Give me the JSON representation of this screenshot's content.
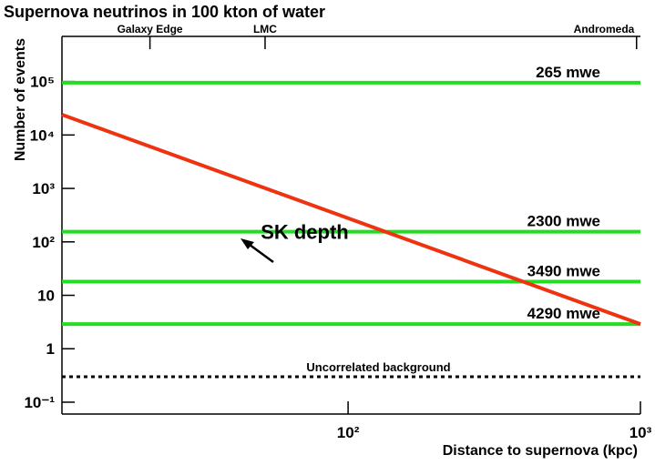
{
  "chart_data": {
    "type": "line",
    "title": "Supernova neutrinos in 100 kton of water",
    "xlabel": "Distance to supernova (kpc)",
    "ylabel": "Number of events",
    "xlog": true,
    "ylog": true,
    "xlim": [
      10.5,
      1000
    ],
    "ylim": [
      0.06,
      700000
    ],
    "xticks": [
      {
        "value": 100,
        "label": "10²"
      },
      {
        "value": 1000,
        "label": "10³"
      }
    ],
    "yticks": [
      {
        "value": 0.1,
        "label": "10⁻¹"
      },
      1,
      10,
      {
        "value": 100,
        "label": "10²"
      },
      {
        "value": 1000,
        "label": "10³"
      },
      {
        "value": 10000,
        "label": "10⁴"
      },
      {
        "value": 100000,
        "label": "10⁵"
      }
    ],
    "top_markers": [
      {
        "name": "Galaxy Edge",
        "x": 21
      },
      {
        "name": "LMC",
        "x": 52
      },
      {
        "name": "Andromeda",
        "x": 970
      }
    ],
    "annotation": {
      "text": "SK depth",
      "x": 42,
      "y": 150
    },
    "series": [
      {
        "name": "265 mwe",
        "color": "#22dd22",
        "style": "solid",
        "x": [
          10.5,
          1000
        ],
        "values": [
          95000,
          95000
        ]
      },
      {
        "name": "2300 mwe",
        "color": "#22dd22",
        "style": "solid",
        "x": [
          10.5,
          1000
        ],
        "values": [
          155,
          155
        ]
      },
      {
        "name": "3490 mwe",
        "color": "#22dd22",
        "style": "solid",
        "x": [
          10.5,
          1000
        ],
        "values": [
          18,
          18
        ]
      },
      {
        "name": "4290 mwe",
        "color": "#22dd22",
        "style": "solid",
        "x": [
          10.5,
          1000
        ],
        "values": [
          2.9,
          2.9
        ]
      },
      {
        "name": "Uncorrelated background",
        "color": "#000000",
        "style": "dotted",
        "x": [
          10.5,
          1000
        ],
        "values": [
          0.3,
          0.3
        ]
      },
      {
        "color": "#ee3311",
        "style": "solid",
        "x": [
          10.5,
          1000
        ],
        "values": [
          24000,
          2.9
        ]
      }
    ]
  }
}
